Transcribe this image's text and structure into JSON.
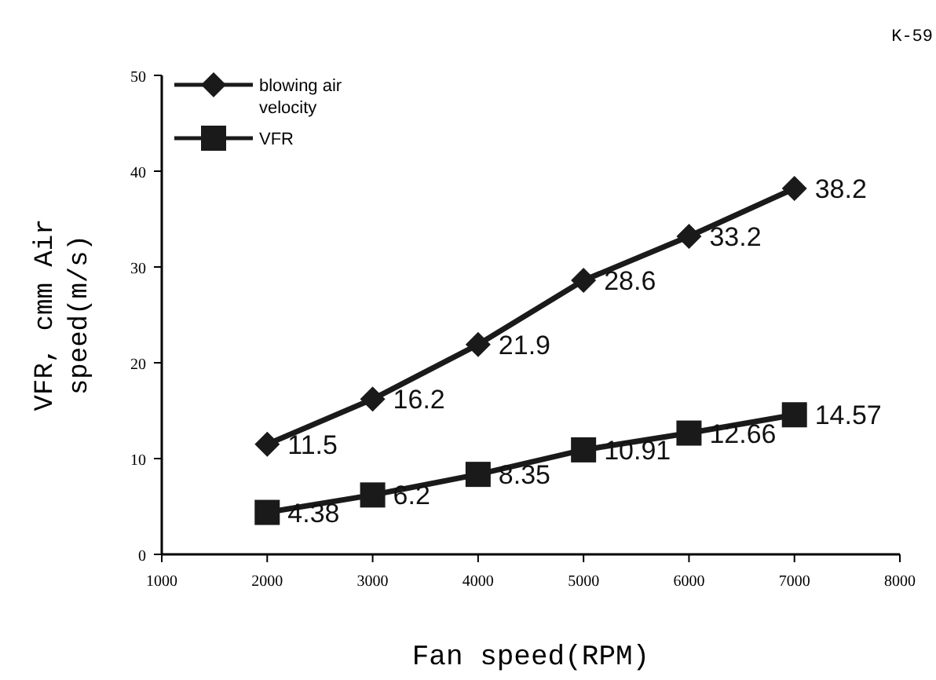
{
  "chart_data": {
    "type": "line",
    "xlabel": "Fan speed(RPM)",
    "ylabel": "VFR, cmm Air speed(m/s)",
    "annotations": [
      "K-59"
    ],
    "x": [
      2000,
      3000,
      4000,
      5000,
      6000,
      7000
    ],
    "series": [
      {
        "name": "blowing air velocity",
        "color": "#1a1a1a",
        "marker": "diamond",
        "values": [
          11.5,
          16.2,
          21.9,
          28.6,
          33.2,
          38.2
        ]
      },
      {
        "name": "VFR",
        "color": "#1a1a1a",
        "marker": "square",
        "values": [
          4.38,
          6.2,
          8.35,
          10.91,
          12.66,
          14.57
        ]
      }
    ],
    "xlim": [
      1000,
      8000
    ],
    "xticks": [
      1000,
      2000,
      3000,
      4000,
      5000,
      6000,
      7000,
      8000
    ],
    "ylim": [
      0,
      50
    ],
    "yticks": [
      0,
      10,
      20,
      30,
      40,
      50
    ],
    "grid": false,
    "legend": "top left",
    "data_labels": true,
    "line_style": "solid"
  }
}
